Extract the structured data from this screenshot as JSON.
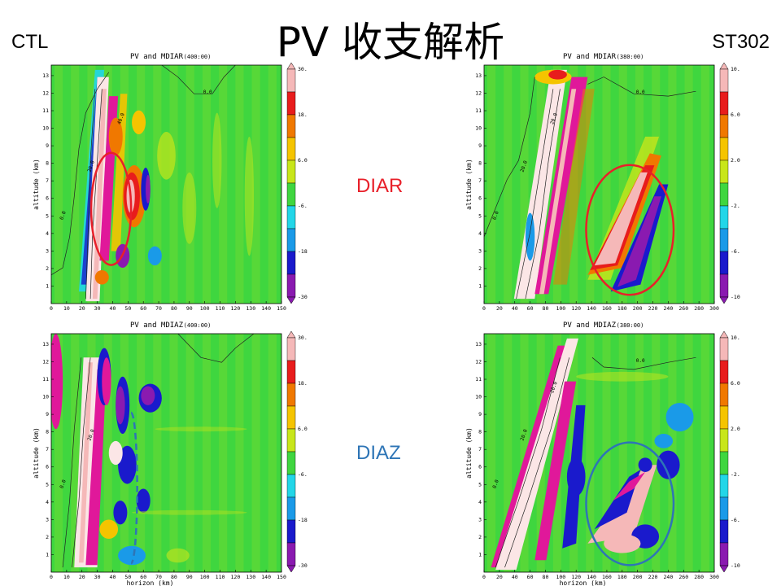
{
  "slide": {
    "title": "PV 收支解析",
    "left_label": "CTL",
    "right_label": "ST302",
    "row_labels": [
      {
        "text": "DIAR",
        "color": "#e8202a"
      },
      {
        "text": "DIAZ",
        "color": "#2e75b6"
      }
    ]
  },
  "palette": {
    "levels": [
      "#8a1ab0",
      "#1a1acc",
      "#1a9ae8",
      "#22d6e8",
      "#3fd63f",
      "#c8e61a",
      "#f5c400",
      "#f07800",
      "#e81c1c",
      "#f5b8b8"
    ],
    "strong_magenta": "#e0189a",
    "pale_pink": "#fbe6e6",
    "background_level": "#3fd63f"
  },
  "chart_data": [
    {
      "type": "heatmap",
      "panel": "CTL-DIAR",
      "title": "PV and MDIAR",
      "time_tag": "(400:00)",
      "xlabel": "",
      "ylabel": "altitude (km)",
      "x_ticks": [
        "0",
        "10",
        "20",
        "30",
        "40",
        "50",
        "60",
        "70",
        "80",
        "90",
        "100",
        "110",
        "120",
        "130",
        "140",
        "150"
      ],
      "y_ticks": [
        "1",
        "2",
        "3",
        "4",
        "5",
        "6",
        "7",
        "8",
        "9",
        "10",
        "11",
        "12",
        "13"
      ],
      "xlim": [
        0,
        150
      ],
      "ylim": [
        0,
        13.6
      ],
      "colorbar_labels": [
        "30.0",
        "18.0",
        "6.0",
        "-6.0",
        "-18.0",
        "-30.0"
      ],
      "contour_labels": [
        "0.0",
        "20.0",
        "40.0",
        "0.0"
      ],
      "annotation": {
        "shape": "ellipse",
        "style": "solid",
        "color": "#e8202a",
        "center_km": [
          39,
          5.4
        ],
        "radius": [
          13,
          3.2
        ]
      }
    },
    {
      "type": "heatmap",
      "panel": "ST302-DIAR",
      "title": "PV and MDIAR",
      "time_tag": "(380:00)",
      "xlabel": "",
      "ylabel": "altitude (km)",
      "x_ticks": [
        "0",
        "20",
        "40",
        "60",
        "80",
        "100",
        "120",
        "140",
        "160",
        "180",
        "200",
        "220",
        "240",
        "260",
        "280",
        "300"
      ],
      "y_ticks": [
        "1",
        "2",
        "3",
        "4",
        "5",
        "6",
        "7",
        "8",
        "9",
        "10",
        "11",
        "12",
        "13"
      ],
      "xlim": [
        0,
        300
      ],
      "ylim": [
        0,
        13.6
      ],
      "colorbar_labels": [
        "10.0",
        "6.0",
        "2.0",
        "-2.0",
        "-6.0",
        "-10.0"
      ],
      "contour_labels": [
        "0.0",
        "20.0",
        "20.0",
        "0.0"
      ],
      "annotation": {
        "shape": "ellipse",
        "style": "solid",
        "color": "#e8202a",
        "center_km": [
          190,
          4.2
        ],
        "radius": [
          57,
          3.7
        ]
      }
    },
    {
      "type": "heatmap",
      "panel": "CTL-DIAZ",
      "title": "PV and MDIAZ",
      "time_tag": "(400:00)",
      "xlabel": "horizon (km)",
      "ylabel": "altitude (km)",
      "x_ticks": [
        "0",
        "10",
        "20",
        "30",
        "40",
        "50",
        "60",
        "70",
        "80",
        "90",
        "100",
        "110",
        "120",
        "130",
        "140",
        "150"
      ],
      "y_ticks": [
        "1",
        "2",
        "3",
        "4",
        "5",
        "6",
        "7",
        "8",
        "9",
        "10",
        "11",
        "12",
        "13"
      ],
      "xlim": [
        0,
        150
      ],
      "ylim": [
        0,
        13.6
      ],
      "colorbar_labels": [
        "30.0",
        "18.0",
        "6.0",
        "-6.0",
        "-18.0",
        "-30.0"
      ],
      "contour_labels": [
        "0.0",
        "20.0"
      ],
      "annotation": {
        "shape": "half-ellipse",
        "style": "dashed",
        "color": "#2e75b6",
        "center_km": [
          52,
          4.8
        ],
        "radius": [
          4,
          4.3
        ]
      }
    },
    {
      "type": "heatmap",
      "panel": "ST302-DIAZ",
      "title": "PV and MDIAZ",
      "time_tag": "(380:00)",
      "xlabel": "horizon (km)",
      "ylabel": "altitude (km)",
      "x_ticks": [
        "0",
        "20",
        "40",
        "60",
        "80",
        "100",
        "120",
        "140",
        "160",
        "180",
        "200",
        "220",
        "240",
        "260",
        "280",
        "300"
      ],
      "y_ticks": [
        "1",
        "2",
        "3",
        "4",
        "5",
        "6",
        "7",
        "8",
        "9",
        "10",
        "11",
        "12",
        "13"
      ],
      "xlim": [
        0,
        300
      ],
      "ylim": [
        0,
        13.6
      ],
      "colorbar_labels": [
        "10.0",
        "6.0",
        "2.0",
        "-2.0",
        "-6.0",
        "-10.0"
      ],
      "contour_labels": [
        "0.0",
        "20.0",
        "20.0",
        "0.0"
      ],
      "annotation": {
        "shape": "ellipse",
        "style": "solid",
        "color": "#2e75b6",
        "center_km": [
          190,
          3.9
        ],
        "radius": [
          57,
          3.5
        ]
      }
    }
  ]
}
